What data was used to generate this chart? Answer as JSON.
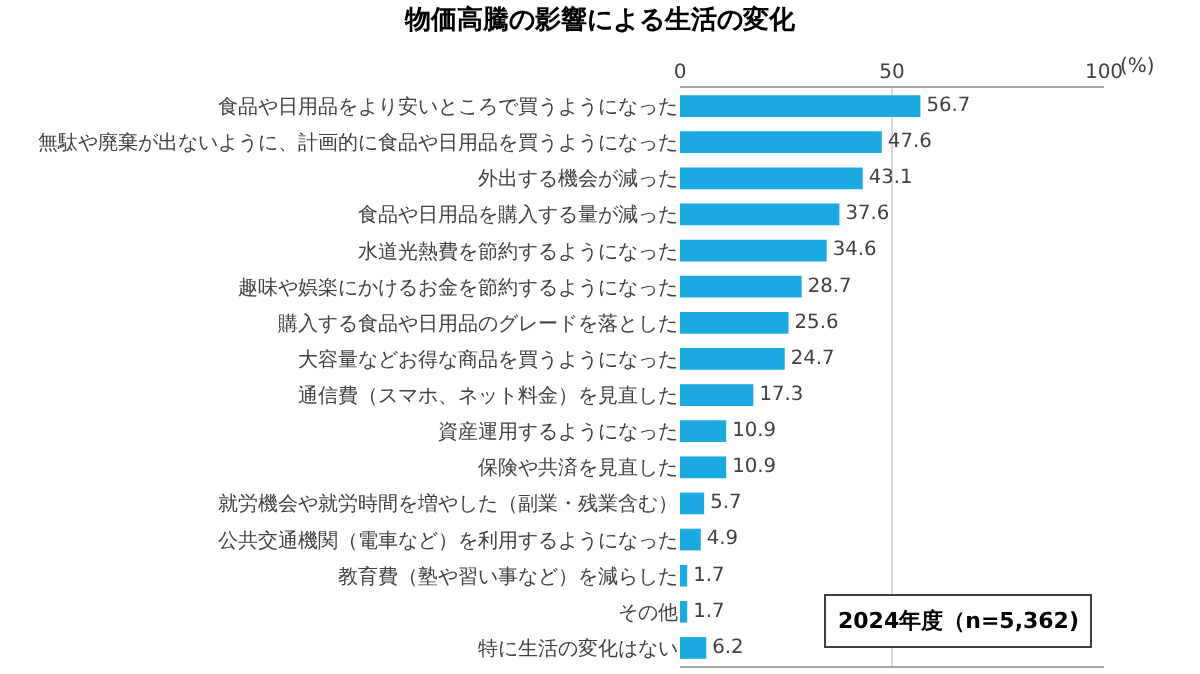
{
  "chart_data": {
    "type": "bar",
    "orientation": "horizontal",
    "title": "物価高騰の影響による生活の変化",
    "categories": [
      "食品や日用品をより安いところで買うようになった",
      "無駄や廃棄が出ないように、計画的に食品や日用品を買うようになった",
      "外出する機会が減った",
      "食品や日用品を購入する量が減った",
      "水道光熱費を節約するようになった",
      "趣味や娯楽にかけるお金を節約するようになった",
      "購入する食品や日用品のグレードを落とした",
      "大容量などお得な商品を買うようになった",
      "通信費（スマホ、ネット料金）を見直した",
      "資産運用するようになった",
      "保険や共済を見直した",
      "就労機会や就労時間を増やした（副業・残業含む）",
      "公共交通機関（電車など）を利用するようになった",
      "教育費（塾や習い事など）を減らした",
      "その他",
      "特に生活の変化はない"
    ],
    "values": [
      56.7,
      47.6,
      43.1,
      37.6,
      34.6,
      28.7,
      25.6,
      24.7,
      17.3,
      10.9,
      10.9,
      5.7,
      4.9,
      1.7,
      1.7,
      6.2
    ],
    "color": "#1ba9e1",
    "xlim": [
      0,
      100
    ],
    "xticks": [
      0,
      50,
      100
    ],
    "grid": "x",
    "data_labels": true,
    "annotations": [
      "(%)",
      "2024年度（n=5,362)"
    ]
  }
}
